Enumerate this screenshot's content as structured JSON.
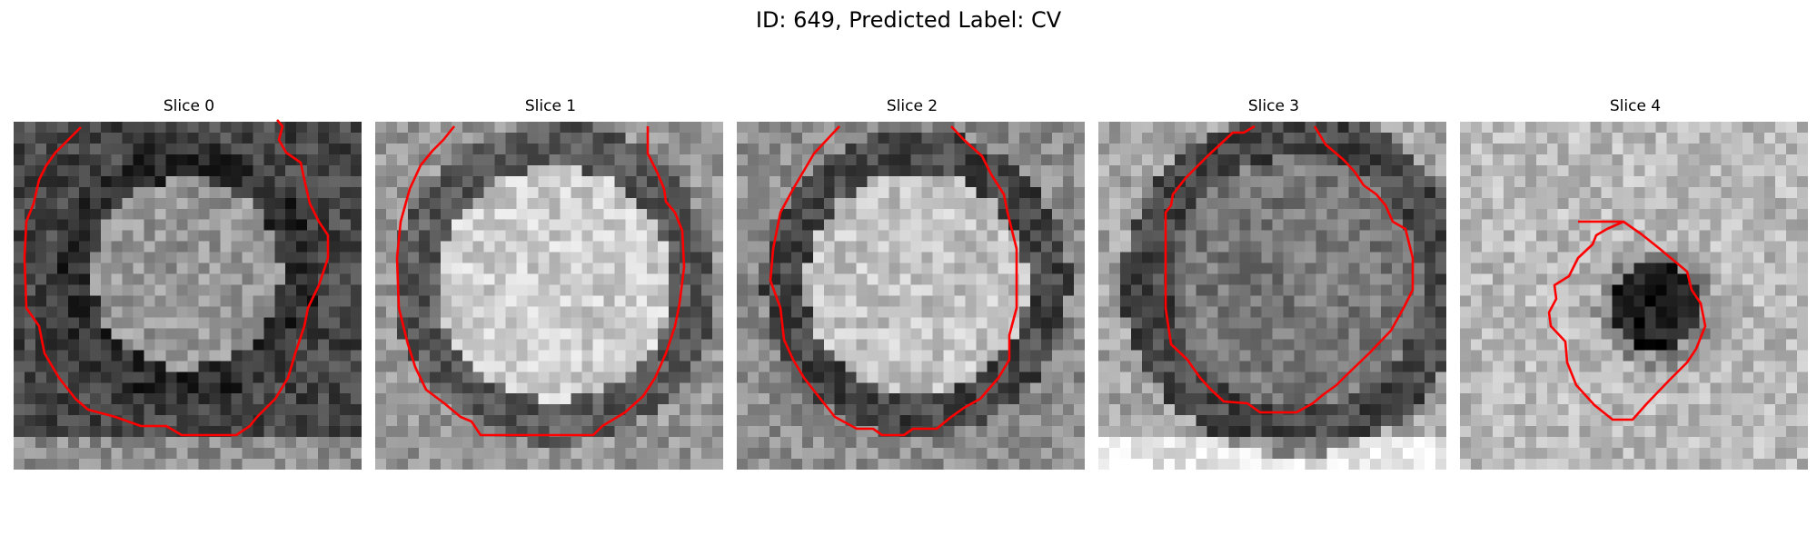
{
  "figure": {
    "title": "ID: 649, Predicted Label: CV",
    "contour_color": "#ff0000"
  },
  "slices": [
    {
      "title": "Slice 0"
    },
    {
      "title": "Slice 1"
    },
    {
      "title": "Slice 2"
    },
    {
      "title": "Slice 3"
    },
    {
      "title": "Slice 4"
    }
  ]
}
